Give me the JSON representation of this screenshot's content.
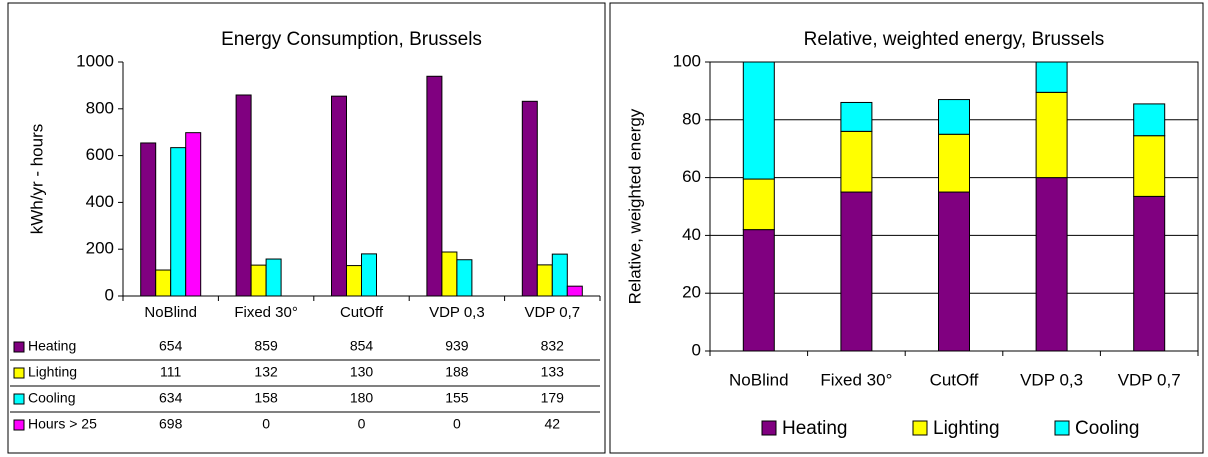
{
  "chart_data": [
    {
      "type": "bar",
      "title": "Energy Consumption, Brussels",
      "y_label": "kWh/yr - hours",
      "categories": [
        "NoBlind",
        "Fixed 30°",
        "CutOff",
        "VDP 0,3",
        "VDP 0,7"
      ],
      "series": [
        {
          "name": "Heating",
          "color": "#800080",
          "values": [
            654,
            859,
            854,
            939,
            832
          ]
        },
        {
          "name": "Lighting",
          "color": "#ffff00",
          "values": [
            111,
            132,
            130,
            188,
            133
          ]
        },
        {
          "name": "Cooling",
          "color": "#00ffff",
          "values": [
            634,
            158,
            180,
            155,
            179
          ]
        },
        {
          "name": "Hours > 25",
          "color": "#ff00ff",
          "values": [
            698,
            0,
            0,
            0,
            42
          ]
        }
      ],
      "ylim": [
        0,
        1000
      ],
      "yticks": [
        0,
        200,
        400,
        600,
        800,
        1000
      ],
      "grid": false,
      "legend": "table"
    },
    {
      "type": "stacked_bar",
      "title": "Relative, weighted energy, Brussels",
      "y_label": "Relative, weighted energy",
      "categories": [
        "NoBlind",
        "Fixed 30°",
        "CutOff",
        "VDP 0,3",
        "VDP 0,7"
      ],
      "series": [
        {
          "name": "Heating",
          "color": "#800080",
          "values": [
            42,
            55,
            55,
            60,
            53.5
          ]
        },
        {
          "name": "Lighting",
          "color": "#ffff00",
          "values": [
            17.5,
            21,
            20,
            29.5,
            21
          ]
        },
        {
          "name": "Cooling",
          "color": "#00ffff",
          "values": [
            40.5,
            10,
            12,
            10.5,
            11
          ]
        }
      ],
      "ylim": [
        0,
        100
      ],
      "yticks": [
        0,
        20,
        40,
        60,
        80,
        100
      ],
      "grid": true,
      "legend": "bottom"
    }
  ]
}
